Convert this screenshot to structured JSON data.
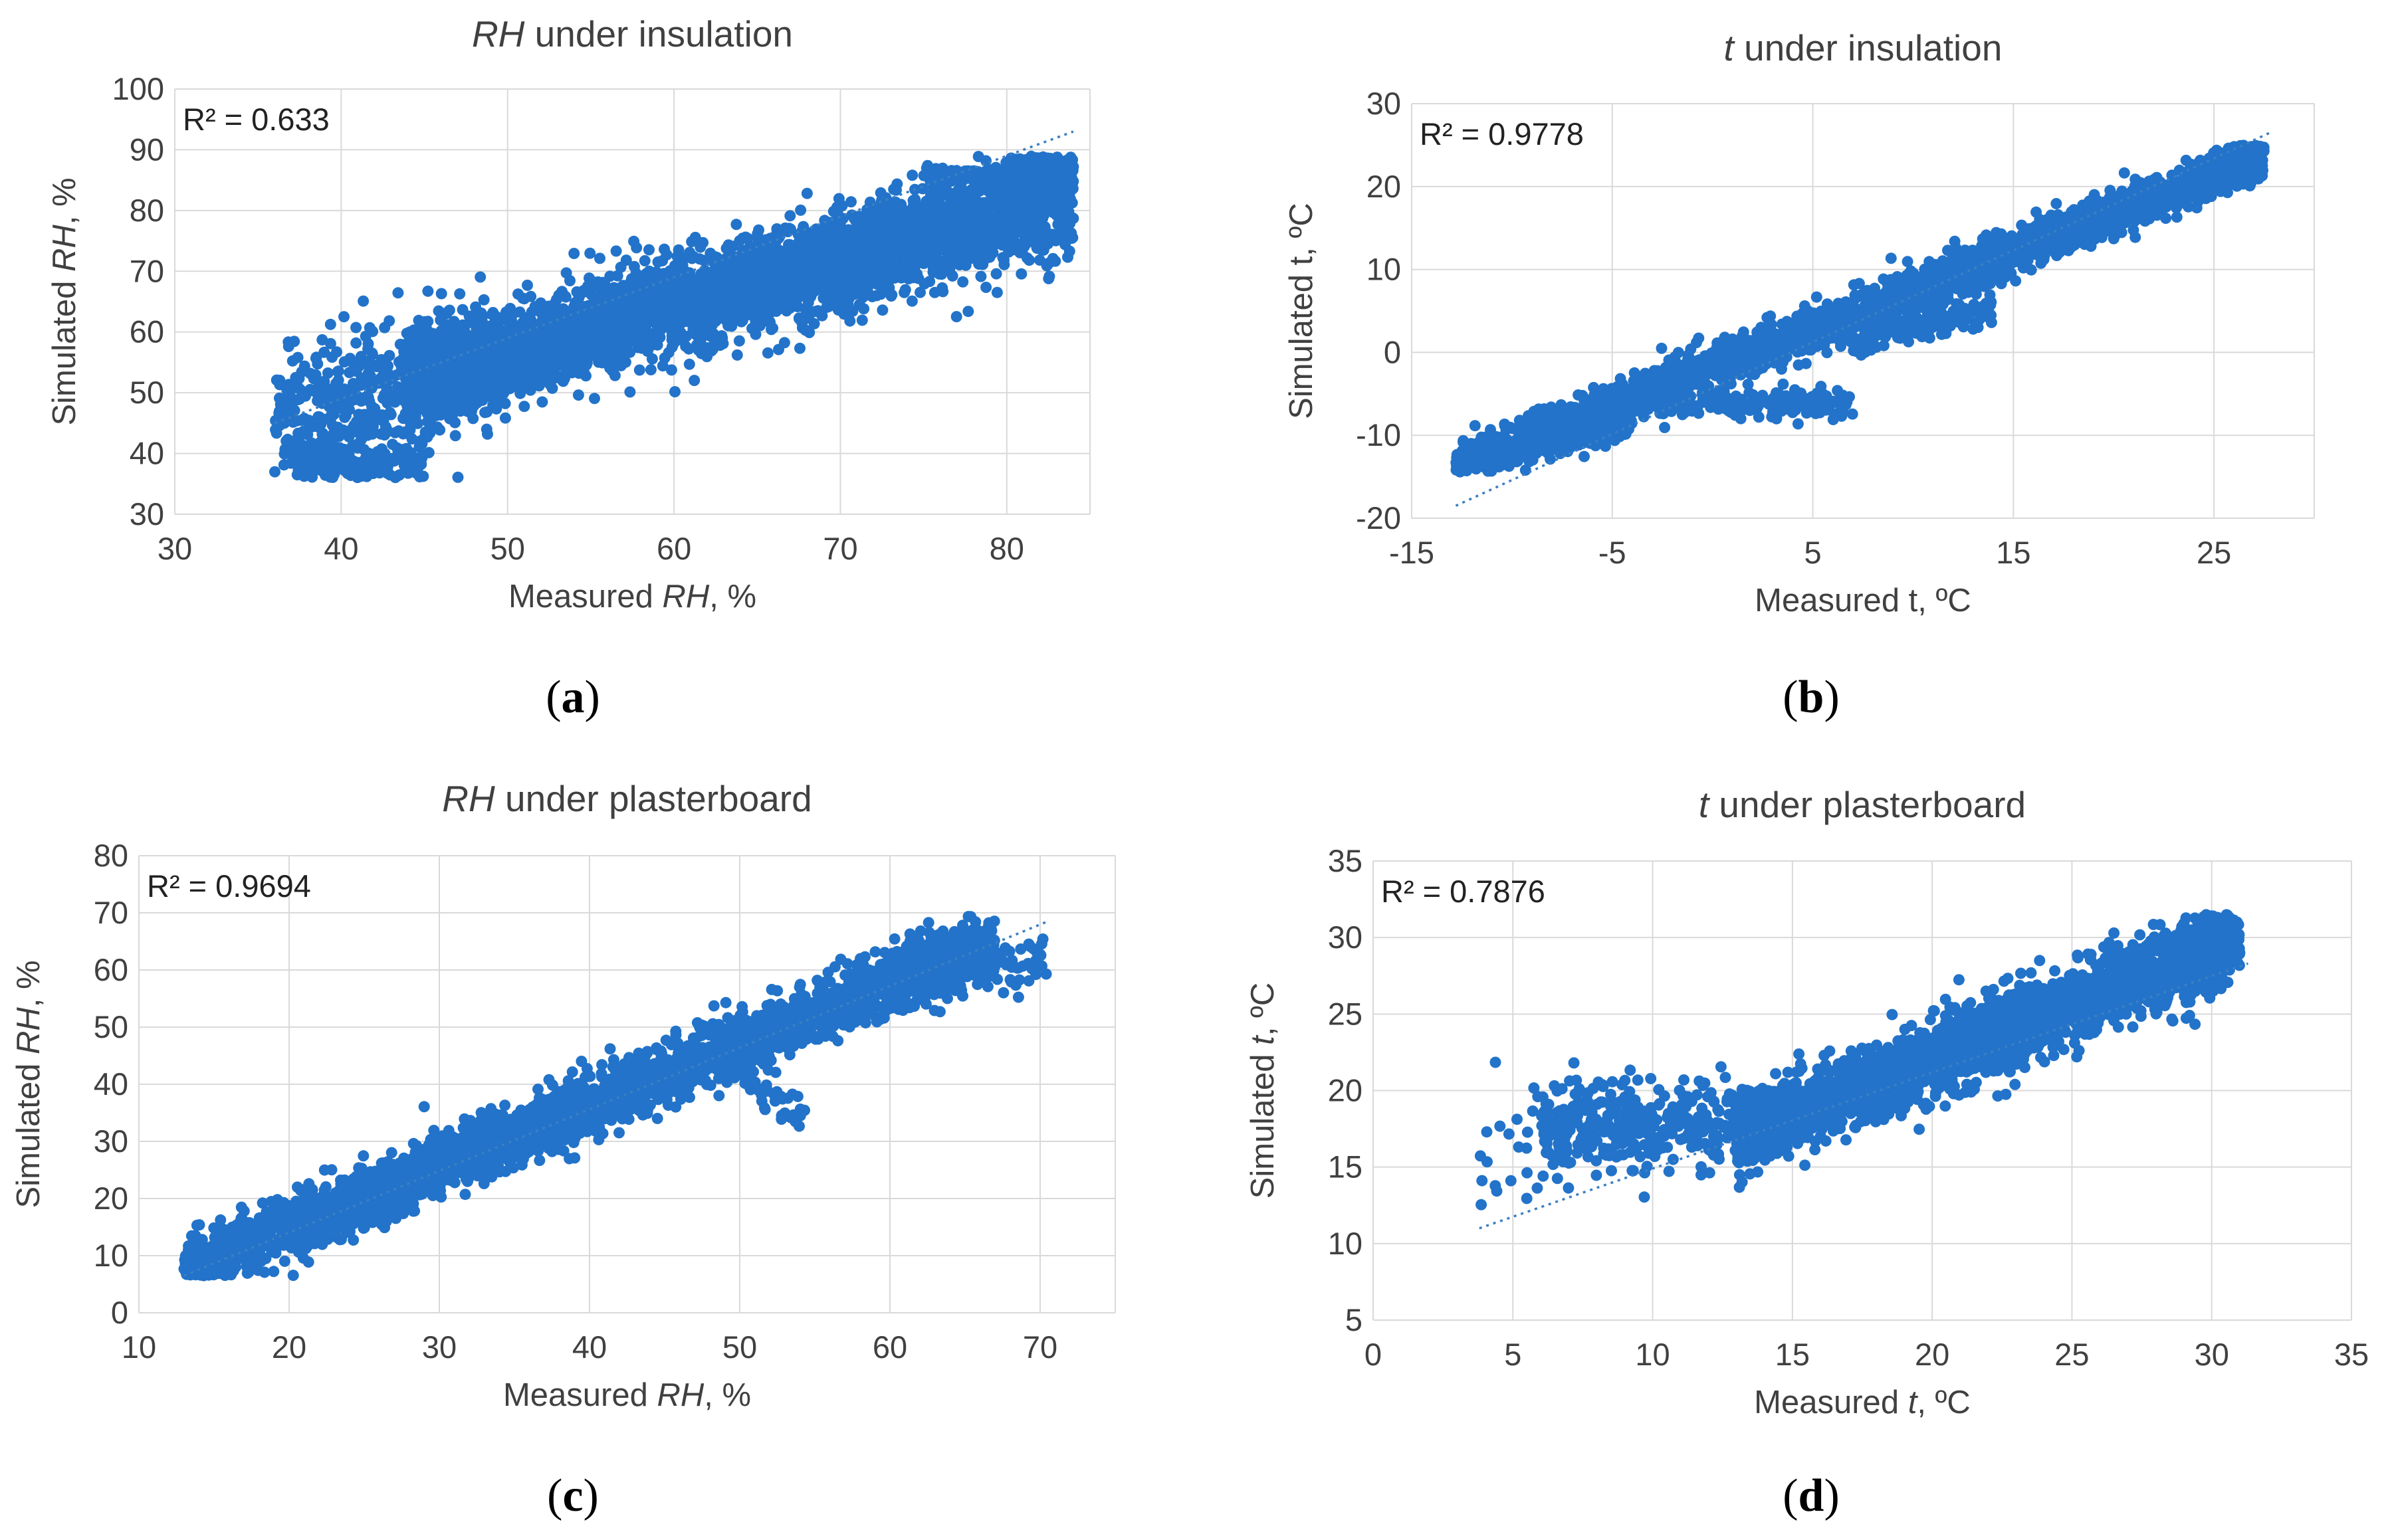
{
  "chart_data": [
    {
      "id": "a",
      "type": "scatter",
      "caption": "a",
      "title": {
        "italic": "RH",
        "rest": " under  insulation"
      },
      "xlabel": {
        "pre": "Measured ",
        "italic": "RH",
        "post": ", %"
      },
      "ylabel": {
        "pre": "Simulated ",
        "italic": "RH",
        "post": ", %"
      },
      "r2": "R² = 0.633",
      "xlim": [
        30,
        85
      ],
      "ylim": [
        30,
        100
      ],
      "xticks": [
        30,
        40,
        50,
        60,
        70,
        80
      ],
      "yticks": [
        30,
        40,
        50,
        60,
        70,
        80,
        90,
        100
      ],
      "xgrid": [
        30,
        40,
        50,
        60,
        70,
        80,
        85
      ],
      "trend": [
        [
          36,
          45
        ],
        [
          84,
          93
        ]
      ],
      "clouds": [
        {
          "n": 3500,
          "x0": 44,
          "x1": 84,
          "slope": 0.78,
          "icpt": 17.5,
          "sd": 4.2,
          "ymin": 40,
          "ymax": 89
        },
        {
          "n": 450,
          "x0": 36,
          "x1": 48,
          "slope": 0.75,
          "icpt": 18,
          "sd": 5.5,
          "ymin": 36,
          "ymax": 89
        },
        {
          "n": 160,
          "x0": 37,
          "x1": 45,
          "slope": 0.0,
          "icpt": 38.5,
          "sd": 1.5,
          "ymin": 36,
          "ymax": 89
        },
        {
          "n": 140,
          "x0": 64,
          "x1": 84,
          "slope": 0.2,
          "icpt": 60,
          "sd": 2.0,
          "ymin": 40,
          "ymax": 89
        },
        {
          "n": 150,
          "x0": 75,
          "x1": 84,
          "slope": 0.0,
          "icpt": 86,
          "sd": 0.6,
          "ymin": 40,
          "ymax": 89
        }
      ],
      "point_color": "#2273c9"
    },
    {
      "id": "b",
      "type": "scatter",
      "caption": "b",
      "title": {
        "italic": "t",
        "rest": " under  insulation"
      },
      "xlabel": {
        "pre": "Measured t, ",
        "italic": "",
        "post": "ºC"
      },
      "ylabel": {
        "pre": "Simulated t, ",
        "italic": "",
        "post": "ºC"
      },
      "r2": "R² = 0.9778",
      "xlim": [
        -15,
        30
      ],
      "ylim": [
        -20,
        30
      ],
      "xticks": [
        -15,
        -5,
        5,
        15,
        25
      ],
      "yticks": [
        -20,
        -10,
        0,
        10,
        20,
        30
      ],
      "xgrid": [
        -15,
        -5,
        5,
        15,
        25,
        30
      ],
      "trend": [
        [
          -12.8,
          -18.5
        ],
        [
          27.8,
          26.5
        ]
      ],
      "clouds": [
        {
          "n": 2600,
          "x0": -12.8,
          "x1": 27.5,
          "slope": 0.93,
          "icpt": -1.9,
          "sd": 1.3,
          "ymin": -14.5,
          "ymax": 25
        },
        {
          "n": 300,
          "x0": -12.8,
          "x1": -4,
          "slope": 0.55,
          "icpt": -6.5,
          "sd": 0.7,
          "ymin": -14.5,
          "ymax": 25
        },
        {
          "n": 200,
          "x0": -3,
          "x1": 7,
          "slope": 0.0,
          "icpt": -6.2,
          "sd": 0.8,
          "ymin": -14.5,
          "ymax": 25
        },
        {
          "n": 160,
          "x0": 7,
          "x1": 14,
          "slope": 0.6,
          "icpt": -3,
          "sd": 1.0,
          "ymin": -14.5,
          "ymax": 25
        }
      ],
      "point_color": "#2273c9"
    },
    {
      "id": "c",
      "type": "scatter",
      "caption": "c",
      "title": {
        "italic": "RH",
        "rest": " under  plasterboard"
      },
      "xlabel": {
        "pre": "Measured ",
        "italic": "RH",
        "post": ", %"
      },
      "ylabel": {
        "pre": "Simulated ",
        "italic": "RH",
        "post": ", %"
      },
      "r2": "R² = 0.9694",
      "xlim": [
        10,
        75
      ],
      "ylim": [
        0,
        80
      ],
      "xticks": [
        10,
        20,
        30,
        40,
        50,
        60,
        70
      ],
      "yticks": [
        0,
        10,
        20,
        30,
        40,
        50,
        60,
        70,
        80
      ],
      "xgrid": [
        10,
        20,
        30,
        40,
        50,
        60,
        70,
        75
      ],
      "trend": [
        [
          13,
          6.5
        ],
        [
          70.5,
          68.5
        ]
      ],
      "clouds": [
        {
          "n": 3600,
          "x0": 13,
          "x1": 67,
          "slope": 1.07,
          "icpt": -6.5,
          "sd": 2.6,
          "ymin": 6.5,
          "ymax": 69.5
        },
        {
          "n": 140,
          "x0": 60,
          "x1": 70.5,
          "slope": 0.3,
          "icpt": 40,
          "sd": 2.0,
          "ymin": 6.5,
          "ymax": 69.5
        },
        {
          "n": 40,
          "x0": 50,
          "x1": 54.5,
          "slope": -2.0,
          "icpt": 142,
          "sd": 1.5,
          "ymin": 30,
          "ymax": 69.5
        }
      ],
      "point_color": "#2273c9"
    },
    {
      "id": "d",
      "type": "scatter",
      "caption": "d",
      "title": {
        "italic": "t",
        "rest": " under  plasterboard"
      },
      "xlabel": {
        "pre": "Measured ",
        "italic": "t",
        "post": ", ºC"
      },
      "ylabel": {
        "pre": "Simulated ",
        "italic": "t",
        "post": ", ºC"
      },
      "r2": "R² = 0.7876",
      "xlim": [
        0,
        35
      ],
      "ylim": [
        5,
        35
      ],
      "xticks": [
        0,
        5,
        10,
        15,
        20,
        25,
        30,
        35
      ],
      "yticks": [
        5,
        10,
        15,
        20,
        25,
        30,
        35
      ],
      "xgrid": [
        0,
        5,
        10,
        15,
        20,
        25,
        30,
        35
      ],
      "trend": [
        [
          3.8,
          11
        ],
        [
          31.3,
          28.3
        ]
      ],
      "clouds": [
        {
          "n": 2800,
          "x0": 13,
          "x1": 31,
          "slope": 0.72,
          "icpt": 7.6,
          "sd": 1.2,
          "ymin": 13,
          "ymax": 31.5
        },
        {
          "n": 380,
          "x0": 6,
          "x1": 14,
          "slope": 0.05,
          "icpt": 17.2,
          "sd": 1.4,
          "ymin": 13,
          "ymax": 31.5
        },
        {
          "n": 30,
          "x0": 3.8,
          "x1": 8,
          "slope": 0.3,
          "icpt": 15,
          "sd": 2.2,
          "ymin": 12.5,
          "ymax": 31.5
        }
      ],
      "point_color": "#2273c9"
    }
  ]
}
